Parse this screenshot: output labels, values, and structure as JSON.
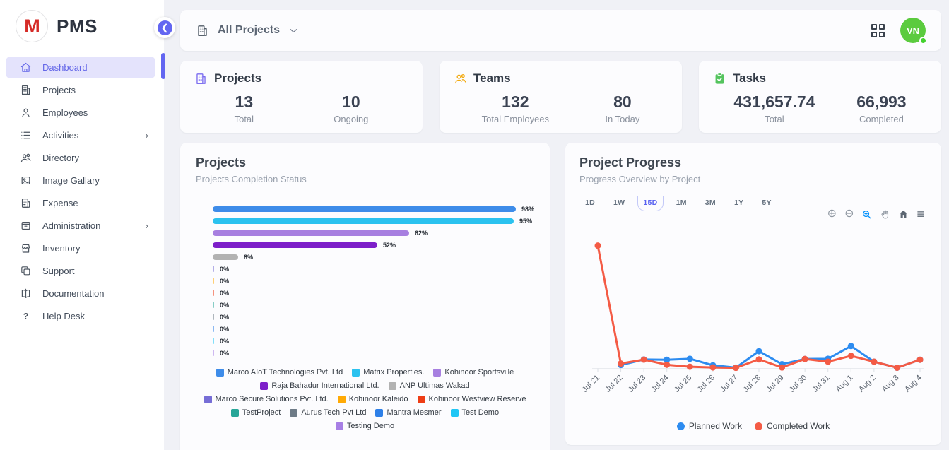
{
  "app": {
    "title": "PMS"
  },
  "sidebar": {
    "logo_letter": "M",
    "logo_text": "PMS",
    "items": [
      {
        "label": "Dashboard",
        "icon": "home-icon",
        "active": true,
        "expandable": false
      },
      {
        "label": "Projects",
        "icon": "building-icon",
        "active": false,
        "expandable": false
      },
      {
        "label": "Employees",
        "icon": "person-icon",
        "active": false,
        "expandable": false
      },
      {
        "label": "Activities",
        "icon": "list-icon",
        "active": false,
        "expandable": true
      },
      {
        "label": "Directory",
        "icon": "people-icon",
        "active": false,
        "expandable": false
      },
      {
        "label": "Image Gallary",
        "icon": "image-icon",
        "active": false,
        "expandable": false
      },
      {
        "label": "Expense",
        "icon": "receipt-icon",
        "active": false,
        "expandable": false
      },
      {
        "label": "Administration",
        "icon": "archive-icon",
        "active": false,
        "expandable": true
      },
      {
        "label": "Inventory",
        "icon": "store-icon",
        "active": false,
        "expandable": false
      },
      {
        "label": "Support",
        "icon": "copy-icon",
        "active": false,
        "expandable": false
      },
      {
        "label": "Documentation",
        "icon": "book-icon",
        "active": false,
        "expandable": false
      },
      {
        "label": "Help Desk",
        "icon": "question-icon",
        "active": false,
        "expandable": false
      }
    ]
  },
  "topbar": {
    "project_filter": "All Projects",
    "avatar_initials": "VN"
  },
  "stats": [
    {
      "title": "Projects",
      "icon": "building-icon",
      "icon_color": "#7b6cf0",
      "metrics": [
        {
          "value": "13",
          "label": "Total"
        },
        {
          "value": "10",
          "label": "Ongoing"
        }
      ]
    },
    {
      "title": "Teams",
      "icon": "people-icon",
      "icon_color": "#f2a90e",
      "metrics": [
        {
          "value": "132",
          "label": "Total Employees"
        },
        {
          "value": "80",
          "label": "In Today"
        }
      ]
    },
    {
      "title": "Tasks",
      "icon": "clipboard-check-icon",
      "icon_color": "#54c45e",
      "metrics": [
        {
          "value": "431,657.74",
          "label": "Total"
        },
        {
          "value": "66,993",
          "label": "Completed"
        }
      ]
    }
  ],
  "chart_data": [
    {
      "type": "bar",
      "orientation": "horizontal",
      "title": "Projects",
      "subtitle": "Projects Completion Status",
      "unit": "%",
      "xlim": [
        0,
        100
      ],
      "categories": [
        "Marco AIoT Technologies Pvt. Ltd",
        "Matrix Properties.",
        "Kohinoor Sportsville",
        "Raja Bahadur International Ltd.",
        "ANP Ultimas Wakad",
        "Marco Secure Solutions Pvt. Ltd.",
        "Kohinoor Kaleido",
        "Kohinoor Westview Reserve",
        "TestProject",
        "Aurus Tech Pvt Ltd",
        "Mantra Mesmer",
        "Test Demo",
        "Testing Demo"
      ],
      "values": [
        98,
        95,
        62,
        52,
        8,
        0,
        0,
        0,
        0,
        0,
        0,
        0,
        0
      ],
      "colors": [
        "#3e8ce9",
        "#2bc2ef",
        "#a77fe0",
        "#7d1fc9",
        "#b2b2b2",
        "#766dd6",
        "#ffaa05",
        "#ee3d15",
        "#27a698",
        "#6e7b87",
        "#2e80e8",
        "#1fc6f5",
        "#a77fe5"
      ],
      "legend_position": "bottom"
    },
    {
      "type": "line",
      "title": "Project Progress",
      "subtitle": "Progress Overview by Project",
      "range_options": [
        "1D",
        "1W",
        "15D",
        "1M",
        "3M",
        "1Y",
        "5Y"
      ],
      "selected_range": "15D",
      "toolbar_icons": [
        "zoom-in-icon",
        "zoom-out-icon",
        "selection-zoom-icon",
        "pan-icon",
        "home-icon",
        "menu-icon"
      ],
      "x": [
        "Jul 21",
        "Jul 22",
        "Jul 23",
        "Jul 24",
        "Jul 25",
        "Jul 26",
        "Jul 27",
        "Jul 28",
        "Jul 29",
        "Jul 30",
        "Jul 31",
        "Aug 1",
        "Aug 2",
        "Aug 3",
        "Aug 4"
      ],
      "series": [
        {
          "name": "Planned Work",
          "color": "#2d8cf0",
          "values": [
            null,
            2.5,
            7,
            6.8,
            7.6,
            2.3,
            0.4,
            13.8,
            3.2,
            7.4,
            7.6,
            18,
            5.2,
            0.3,
            6.8
          ]
        },
        {
          "name": "Completed Work",
          "color": "#f45b45",
          "values": [
            100,
            3.7,
            6.9,
            2.7,
            1.1,
            0.5,
            0.2,
            7.1,
            0.5,
            7.4,
            5.2,
            10,
            5.2,
            0.3,
            6.8
          ]
        }
      ],
      "ylim": [
        0,
        105
      ],
      "y_axis_labels": false,
      "grid": false,
      "legend_position": "bottom"
    }
  ]
}
